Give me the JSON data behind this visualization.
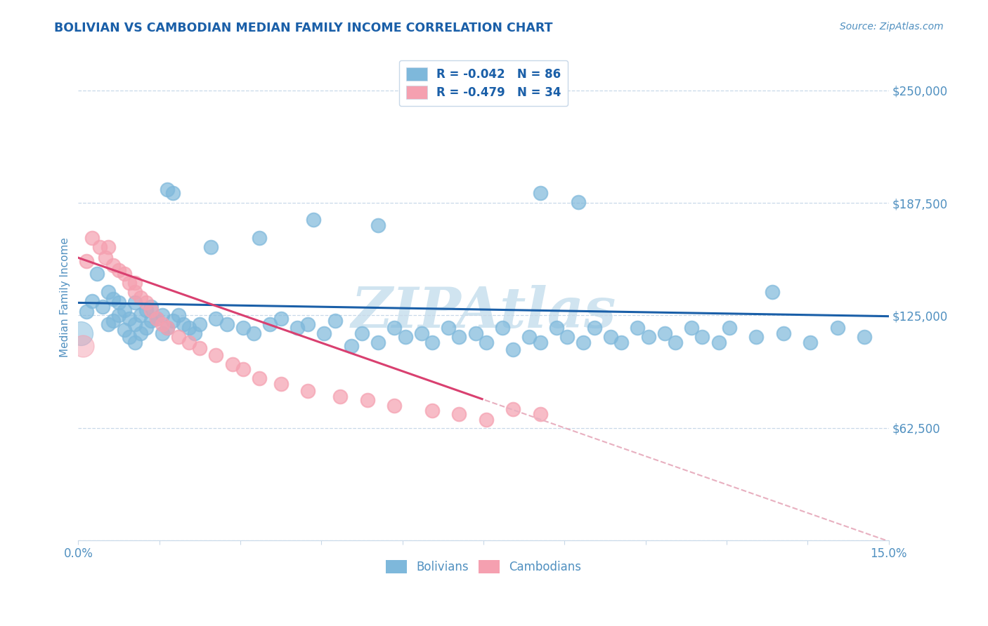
{
  "title": "BOLIVIAN VS CAMBODIAN MEDIAN FAMILY INCOME CORRELATION CHART",
  "source": "Source: ZipAtlas.com",
  "ylabel": "Median Family Income",
  "yticks": [
    0,
    62500,
    125000,
    187500,
    250000
  ],
  "ytick_labels": [
    "",
    "$62,500",
    "$125,000",
    "$187,500",
    "$250,000"
  ],
  "xmin": 0.0,
  "xmax": 15.0,
  "ymin": 0,
  "ymax": 270000,
  "bolivian_R": -0.042,
  "bolivian_N": 86,
  "cambodian_R": -0.479,
  "cambodian_N": 34,
  "blue_color": "#7eb8db",
  "pink_color": "#f5a0b0",
  "blue_line_color": "#1a5fa8",
  "pink_line_color": "#d94070",
  "pink_dash_color": "#e8b0c0",
  "grid_color": "#c8d8e8",
  "title_color": "#1a5fa8",
  "watermark_color": "#d0e4f0",
  "legend_text_color": "#1a5fa8",
  "axis_text_color": "#5090c0",
  "source_color": "#5090c0",
  "background_color": "#ffffff",
  "bolivian_x": [
    0.15,
    0.25,
    0.35,
    0.45,
    0.55,
    0.55,
    0.65,
    0.65,
    0.75,
    0.75,
    0.85,
    0.85,
    0.95,
    0.95,
    1.05,
    1.05,
    1.05,
    1.15,
    1.15,
    1.25,
    1.25,
    1.35,
    1.35,
    1.45,
    1.55,
    1.55,
    1.65,
    1.75,
    1.85,
    1.95,
    2.05,
    2.15,
    2.25,
    2.55,
    2.75,
    3.05,
    3.25,
    3.55,
    3.75,
    4.05,
    4.25,
    4.55,
    4.75,
    5.05,
    5.25,
    5.55,
    5.85,
    6.05,
    6.35,
    6.55,
    6.85,
    7.05,
    7.35,
    7.55,
    7.85,
    8.05,
    8.35,
    8.55,
    8.85,
    9.05,
    9.35,
    9.55,
    9.85,
    10.05,
    10.35,
    10.55,
    10.85,
    11.05,
    11.35,
    11.55,
    11.85,
    12.05,
    12.55,
    13.05,
    13.55,
    14.05,
    14.55,
    12.85,
    4.35,
    3.35,
    1.65,
    1.75,
    8.55,
    9.25,
    2.45,
    5.55
  ],
  "bolivian_y": [
    127000,
    133000,
    148000,
    130000,
    120000,
    138000,
    122000,
    134000,
    125000,
    132000,
    117000,
    128000,
    113000,
    123000,
    110000,
    120000,
    132000,
    115000,
    125000,
    118000,
    128000,
    122000,
    130000,
    123000,
    115000,
    125000,
    118000,
    122000,
    125000,
    120000,
    118000,
    115000,
    120000,
    123000,
    120000,
    118000,
    115000,
    120000,
    123000,
    118000,
    120000,
    115000,
    122000,
    108000,
    115000,
    110000,
    118000,
    113000,
    115000,
    110000,
    118000,
    113000,
    115000,
    110000,
    118000,
    106000,
    113000,
    110000,
    118000,
    113000,
    110000,
    118000,
    113000,
    110000,
    118000,
    113000,
    115000,
    110000,
    118000,
    113000,
    110000,
    118000,
    113000,
    115000,
    110000,
    118000,
    113000,
    138000,
    178000,
    168000,
    195000,
    193000,
    193000,
    188000,
    163000,
    175000
  ],
  "cambodian_x": [
    0.15,
    0.25,
    0.4,
    0.5,
    0.55,
    0.65,
    0.75,
    0.85,
    0.95,
    1.05,
    1.05,
    1.15,
    1.25,
    1.35,
    1.45,
    1.55,
    1.65,
    1.85,
    2.05,
    2.25,
    2.55,
    2.85,
    3.05,
    3.35,
    3.75,
    4.25,
    4.85,
    5.35,
    5.85,
    6.55,
    7.05,
    7.55,
    8.05,
    8.55
  ],
  "cambodian_y": [
    155000,
    168000,
    163000,
    157000,
    163000,
    153000,
    150000,
    148000,
    143000,
    138000,
    143000,
    135000,
    132000,
    128000,
    123000,
    120000,
    118000,
    113000,
    110000,
    107000,
    103000,
    98000,
    95000,
    90000,
    87000,
    83000,
    80000,
    78000,
    75000,
    72000,
    70000,
    67000,
    73000,
    70000
  ],
  "dot_size": 200,
  "dot_alpha": 0.7,
  "dot_linewidth": 1.5,
  "blue_line_intercept": 132000,
  "blue_line_slope": -500,
  "pink_line_intercept": 157000,
  "pink_line_slope": -10500,
  "pink_solid_end": 7.5
}
